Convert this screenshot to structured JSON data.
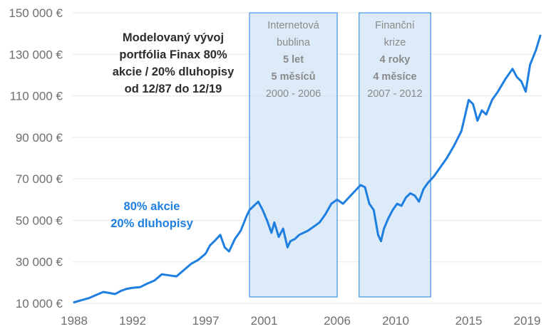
{
  "chart_data": {
    "type": "line",
    "title_lines": [
      "Modelovaný vývoj",
      "portfólia Finax 80%",
      "akcie / 20% dluhopisy",
      "od 12/87 do 12/19"
    ],
    "xlabel": "",
    "ylabel": "",
    "xlim": [
      1987.9,
      2020.0
    ],
    "ylim": [
      10000,
      150000
    ],
    "y_ticks": [
      10000,
      30000,
      50000,
      70000,
      90000,
      110000,
      130000,
      150000
    ],
    "y_tick_labels": [
      "10 000 €",
      "30 000 €",
      "50 000 €",
      "70 000 €",
      "90 000 €",
      "110 000 €",
      "130 000 €",
      "150 000 €"
    ],
    "x_ticks": [
      1988,
      1992,
      1997,
      2001,
      2006,
      2010,
      2015,
      2019
    ],
    "x_tick_labels": [
      "1988",
      "1992",
      "1997",
      "2001",
      "2006",
      "2010",
      "2015",
      "2019"
    ],
    "grid": true,
    "line_color": "#1e7fe0",
    "series": [
      {
        "name": "80% akcie 20% dluhopisy",
        "legend_lines": [
          "80% akcie",
          "20% dluhopisy"
        ],
        "x": [
          1988.0,
          1988.5,
          1989.0,
          1989.5,
          1990.0,
          1990.4,
          1990.8,
          1991.2,
          1991.6,
          1992.0,
          1992.5,
          1993.0,
          1993.5,
          1994.0,
          1994.5,
          1995.0,
          1995.5,
          1996.0,
          1996.5,
          1997.0,
          1997.3,
          1997.6,
          1998.0,
          1998.3,
          1998.6,
          1999.0,
          1999.4,
          1999.8,
          2000.0,
          2000.3,
          2000.6,
          2000.9,
          2001.2,
          2001.5,
          2001.7,
          2002.0,
          2002.3,
          2002.6,
          2002.8,
          2003.1,
          2003.4,
          2003.7,
          2004.0,
          2004.4,
          2004.8,
          2005.2,
          2005.6,
          2006.0,
          2006.4,
          2006.8,
          2007.2,
          2007.6,
          2007.9,
          2008.2,
          2008.5,
          2008.8,
          2009.0,
          2009.2,
          2009.5,
          2009.8,
          2010.1,
          2010.4,
          2010.7,
          2011.0,
          2011.3,
          2011.6,
          2011.9,
          2012.2,
          2012.6,
          2013.0,
          2013.5,
          2014.0,
          2014.5,
          2015.0,
          2015.3,
          2015.6,
          2015.9,
          2016.2,
          2016.6,
          2017.0,
          2017.5,
          2018.0,
          2018.3,
          2018.6,
          2018.9,
          2019.2,
          2019.6,
          2019.9
        ],
        "values": [
          10500,
          11500,
          12500,
          14000,
          15500,
          15000,
          14500,
          16000,
          17000,
          17500,
          17800,
          19500,
          21000,
          24000,
          23500,
          23000,
          26000,
          29000,
          31000,
          34000,
          38000,
          40000,
          43000,
          37000,
          35000,
          41000,
          45000,
          52000,
          55000,
          57000,
          59000,
          55000,
          50000,
          44000,
          49000,
          42000,
          46000,
          37000,
          40000,
          41000,
          43000,
          44000,
          45000,
          47000,
          49000,
          53000,
          58000,
          60000,
          58000,
          61000,
          64000,
          67000,
          66000,
          58000,
          55000,
          43000,
          40000,
          46000,
          51000,
          55000,
          58000,
          57000,
          61000,
          63000,
          62000,
          59000,
          65000,
          68000,
          71000,
          75000,
          80000,
          86000,
          93000,
          108000,
          106000,
          98000,
          103000,
          101000,
          108000,
          112000,
          118000,
          123000,
          119000,
          117000,
          112000,
          125000,
          132000,
          139000
        ]
      }
    ],
    "periods": [
      {
        "x_start": 2000.0,
        "x_end": 2006.0,
        "label_lines": [
          "Internetová",
          "bublina"
        ],
        "duration_lines": [
          "5 let",
          "5 měsíců"
        ],
        "range_label": "2000 - 2006"
      },
      {
        "x_start": 2007.5,
        "x_end": 2012.4,
        "label_lines": [
          "Finanční",
          "krize"
        ],
        "duration_lines": [
          "4 roky",
          "4 měsíce"
        ],
        "range_label": "2007 - 2012"
      }
    ]
  }
}
